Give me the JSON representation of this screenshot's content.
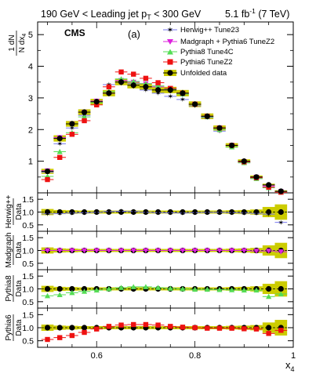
{
  "header": {
    "left": "190 GeV < Leading jet p",
    "left_sub": "T",
    "left_tail": " < 300 GeV",
    "lumi": "5.1 fb",
    "lumi_sup": "-1",
    "energy": " (7 TeV)"
  },
  "main_panel": {
    "ylabel_num": "1 dN",
    "ylabel_den": "N dx",
    "ylabel_den_sub": "4",
    "experiment": "CMS",
    "panel_tag": "(a)"
  },
  "xaxis": {
    "label": "x",
    "label_sub": "4",
    "range": [
      0.48,
      1.0
    ],
    "ticks": [
      "0.6",
      "0.8",
      "1"
    ]
  },
  "legend": [
    {
      "key": "herwig",
      "label": "Herwig++ Tune23"
    },
    {
      "key": "madgraph",
      "label": "Madgraph + Pythia6 TuneZ2"
    },
    {
      "key": "pythia8",
      "label": "Pythia8 Tune4C"
    },
    {
      "key": "pythia6",
      "label": "Pythia6 TuneZ2"
    },
    {
      "key": "data",
      "label": "Unfolded data"
    }
  ],
  "ratio_labels": [
    {
      "top": "Herwig++",
      "bottom": "Data"
    },
    {
      "top": "Madgraph",
      "bottom": "Data"
    },
    {
      "top": "Pythia8",
      "bottom": "Data"
    },
    {
      "top": "Pythia6",
      "bottom": "Data"
    }
  ],
  "ratio_ticks": [
    "0.5",
    "1.0",
    "1.5"
  ],
  "main_ticks": [
    "1",
    "2",
    "3",
    "4",
    "5"
  ],
  "colors": {
    "herwig": "#7777ee",
    "madgraph": "#dd22dd",
    "pythia8": "#55dd55",
    "pythia6": "#ee1111",
    "data": "#000000",
    "band": "#cccc00"
  },
  "chart_data": {
    "type": "scatter",
    "x": [
      0.5,
      0.525,
      0.55,
      0.575,
      0.6,
      0.625,
      0.65,
      0.675,
      0.7,
      0.725,
      0.75,
      0.775,
      0.8,
      0.825,
      0.85,
      0.875,
      0.9,
      0.925,
      0.95,
      0.975
    ],
    "ylim_main": [
      0,
      5.4
    ],
    "ylim_ratio": [
      0.25,
      1.75
    ],
    "series": [
      {
        "name": "Herwig++ Tune23",
        "key": "herwig",
        "values": [
          0.65,
          1.55,
          2.05,
          2.45,
          2.85,
          3.42,
          3.55,
          3.45,
          3.25,
          3.15,
          3.05,
          2.95,
          2.75,
          2.38,
          1.95,
          1.45,
          0.95,
          0.45,
          0.18,
          0.02
        ]
      },
      {
        "name": "Madgraph + Pythia6 TuneZ2",
        "key": "madgraph",
        "values": [
          0.7,
          1.75,
          2.18,
          2.55,
          2.9,
          3.15,
          3.55,
          3.5,
          3.45,
          3.35,
          3.3,
          3.15,
          2.8,
          2.42,
          2.05,
          1.5,
          0.98,
          0.5,
          0.22,
          0.04
        ]
      },
      {
        "name": "Pythia8 Tune4C",
        "key": "pythia8",
        "values": [
          0.52,
          1.3,
          1.9,
          2.4,
          2.85,
          3.2,
          3.6,
          3.52,
          3.45,
          3.38,
          3.28,
          3.12,
          2.8,
          2.4,
          2.0,
          1.45,
          0.95,
          0.45,
          0.16,
          0.02
        ]
      },
      {
        "name": "Pythia6 TuneZ2",
        "key": "pythia6",
        "values": [
          0.42,
          1.12,
          1.85,
          2.28,
          2.78,
          3.35,
          3.82,
          3.75,
          3.62,
          3.48,
          3.3,
          3.15,
          2.8,
          2.42,
          2.05,
          1.5,
          0.98,
          0.48,
          0.18,
          0.02
        ]
      },
      {
        "name": "Unfolded data",
        "key": "data",
        "values": [
          0.68,
          1.72,
          2.18,
          2.55,
          2.88,
          3.15,
          3.5,
          3.4,
          3.35,
          3.25,
          3.25,
          3.15,
          2.8,
          2.42,
          2.05,
          1.5,
          1.0,
          0.5,
          0.25,
          0.05
        ],
        "errors": [
          0.08,
          0.1,
          0.09,
          0.09,
          0.09,
          0.1,
          0.1,
          0.1,
          0.1,
          0.1,
          0.1,
          0.1,
          0.09,
          0.09,
          0.08,
          0.07,
          0.06,
          0.05,
          0.04,
          0.03
        ]
      }
    ],
    "ratios": [
      {
        "key": "herwig",
        "values": [
          0.93,
          0.94,
          0.96,
          0.97,
          0.99,
          1.02,
          1.03,
          1.02,
          0.99,
          0.98,
          0.97,
          0.96,
          0.98,
          0.99,
          0.99,
          0.98,
          0.96,
          0.95,
          0.92,
          0.6
        ]
      },
      {
        "key": "madgraph",
        "values": [
          1.0,
          1.0,
          1.0,
          1.0,
          1.0,
          1.0,
          1.0,
          1.0,
          1.0,
          1.0,
          1.0,
          1.0,
          1.0,
          1.0,
          1.0,
          1.0,
          1.0,
          0.98,
          0.98,
          0.95
        ]
      },
      {
        "key": "pythia8",
        "values": [
          0.73,
          0.77,
          0.85,
          0.9,
          0.95,
          1.0,
          1.05,
          1.08,
          1.08,
          1.05,
          1.02,
          1.0,
          0.98,
          0.98,
          0.97,
          0.96,
          0.95,
          0.95,
          0.7,
          0.8
        ]
      },
      {
        "key": "pythia6",
        "values": [
          0.55,
          0.62,
          0.7,
          0.82,
          0.95,
          1.05,
          1.1,
          1.12,
          1.12,
          1.1,
          1.05,
          1.02,
          1.0,
          0.98,
          0.98,
          0.98,
          0.96,
          0.95,
          0.78,
          0.9
        ]
      }
    ],
    "data_band_halfwidth": [
      0.12,
      0.08,
      0.07,
      0.06,
      0.06,
      0.06,
      0.06,
      0.06,
      0.06,
      0.06,
      0.06,
      0.06,
      0.06,
      0.06,
      0.06,
      0.07,
      0.08,
      0.1,
      0.2,
      0.3
    ]
  }
}
